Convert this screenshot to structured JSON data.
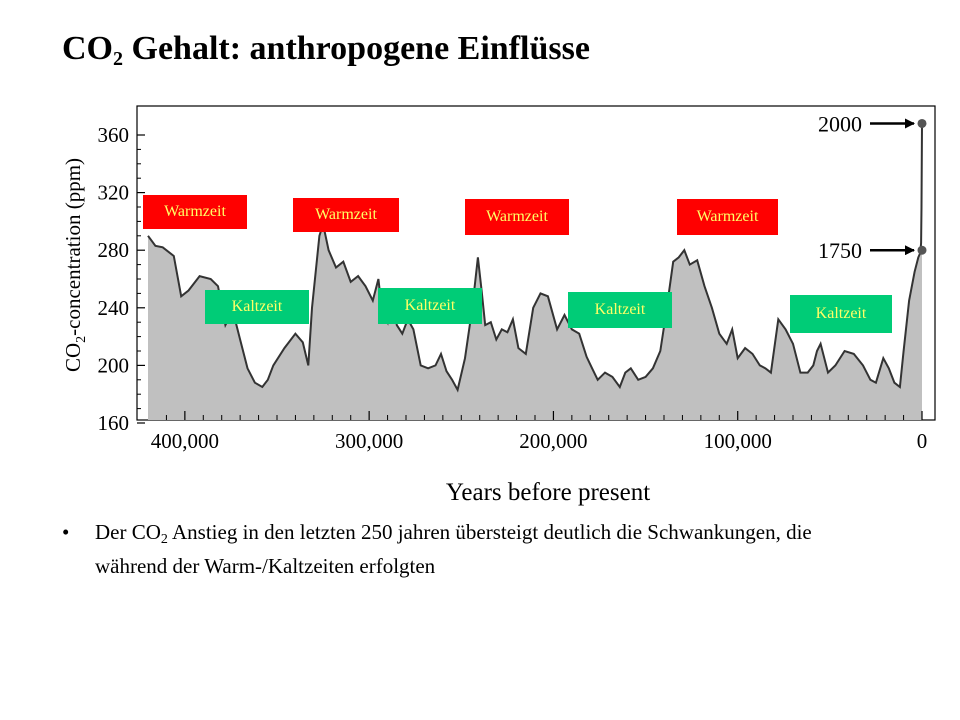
{
  "slide": {
    "title_main": "CO",
    "title_sub": "2",
    "title_rest": " Gehalt: anthropogene Einflüsse",
    "bullet_symbol": "•",
    "bullet_p1": "Der CO",
    "bullet_sub": "2",
    "bullet_p2": " Anstieg in den letzten 250 jahren übersteigt deutlich die Schwankungen, die während der Warm-/Kaltzeiten erfolgten"
  },
  "colors": {
    "warm": "#ff0000",
    "cold": "#00cc77",
    "label_text": "#ffff66",
    "fill": "#c0c0c0",
    "line": "#333333"
  },
  "chart_data": {
    "type": "area",
    "xlabel": "Years before present",
    "ylabel_main": "CO",
    "ylabel_sub": "2",
    "ylabel_rest": "-concentration (ppm)",
    "x_reversed": true,
    "xlim": [
      420000,
      0
    ],
    "ylim": [
      160,
      370
    ],
    "x_ticks": [
      400000,
      300000,
      200000,
      100000,
      0
    ],
    "x_tick_labels": [
      "400,000",
      "300,000",
      "200,000",
      "100,000",
      "0"
    ],
    "y_ticks": [
      160,
      200,
      240,
      280,
      320,
      360
    ],
    "y_tick_labels": [
      "160",
      "200",
      "240",
      "280",
      "320",
      "360"
    ],
    "annotations": [
      {
        "label": "2000",
        "x": 0,
        "y": 368
      },
      {
        "label": "1750",
        "x": 0,
        "y": 280
      }
    ],
    "eras": [
      {
        "label": "Warmzeit",
        "kind": "warm"
      },
      {
        "label": "Kaltzeit",
        "kind": "cold"
      },
      {
        "label": "Warmzeit",
        "kind": "warm"
      },
      {
        "label": "Kaltzeit",
        "kind": "cold"
      },
      {
        "label": "Warmzeit",
        "kind": "warm"
      },
      {
        "label": "Kaltzeit",
        "kind": "cold"
      },
      {
        "label": "Warmzeit",
        "kind": "warm"
      },
      {
        "label": "Kaltzeit",
        "kind": "cold"
      }
    ],
    "x": [
      420000,
      416000,
      412000,
      406000,
      402000,
      398000,
      392000,
      386000,
      382000,
      378000,
      374000,
      370000,
      366000,
      362000,
      358000,
      355000,
      352000,
      346000,
      340000,
      336000,
      333000,
      331000,
      327000,
      325000,
      322000,
      318000,
      314000,
      310000,
      306000,
      302000,
      298000,
      295000,
      293000,
      290000,
      288000,
      285000,
      282000,
      279000,
      276000,
      272000,
      268000,
      264000,
      261000,
      258000,
      255000,
      252000,
      248000,
      244000,
      241000,
      239000,
      237000,
      234000,
      231000,
      228000,
      225000,
      222000,
      219000,
      215000,
      211000,
      207000,
      203000,
      198000,
      194000,
      190000,
      186000,
      182000,
      179000,
      176000,
      172000,
      168000,
      164000,
      161000,
      158000,
      154000,
      150000,
      146000,
      142000,
      139000,
      135000,
      132000,
      129000,
      126000,
      122000,
      118000,
      114000,
      110000,
      106000,
      103000,
      100000,
      96000,
      92000,
      88000,
      85000,
      82000,
      78000,
      74000,
      70000,
      66000,
      62000,
      59000,
      57000,
      55000,
      51000,
      47000,
      42000,
      37000,
      32000,
      28000,
      25000,
      21000,
      18000,
      15000,
      12000,
      10000,
      7000,
      4000,
      2000,
      1000,
      500,
      250,
      0
    ],
    "values": [
      290,
      283,
      282,
      276,
      248,
      252,
      262,
      260,
      255,
      228,
      238,
      218,
      198,
      188,
      185,
      190,
      200,
      212,
      222,
      216,
      200,
      240,
      290,
      298,
      280,
      268,
      272,
      258,
      262,
      255,
      245,
      260,
      238,
      230,
      252,
      228,
      222,
      232,
      225,
      200,
      198,
      200,
      208,
      196,
      190,
      183,
      205,
      240,
      275,
      252,
      228,
      230,
      218,
      225,
      223,
      232,
      212,
      208,
      240,
      250,
      248,
      225,
      235,
      225,
      222,
      206,
      198,
      190,
      195,
      192,
      185,
      195,
      198,
      190,
      192,
      198,
      210,
      235,
      272,
      275,
      280,
      270,
      273,
      255,
      240,
      222,
      215,
      225,
      205,
      212,
      208,
      200,
      198,
      195,
      232,
      225,
      215,
      195,
      195,
      200,
      210,
      215,
      195,
      200,
      210,
      208,
      200,
      190,
      188,
      205,
      198,
      188,
      185,
      210,
      245,
      265,
      275,
      278,
      285,
      310,
      368
    ]
  }
}
